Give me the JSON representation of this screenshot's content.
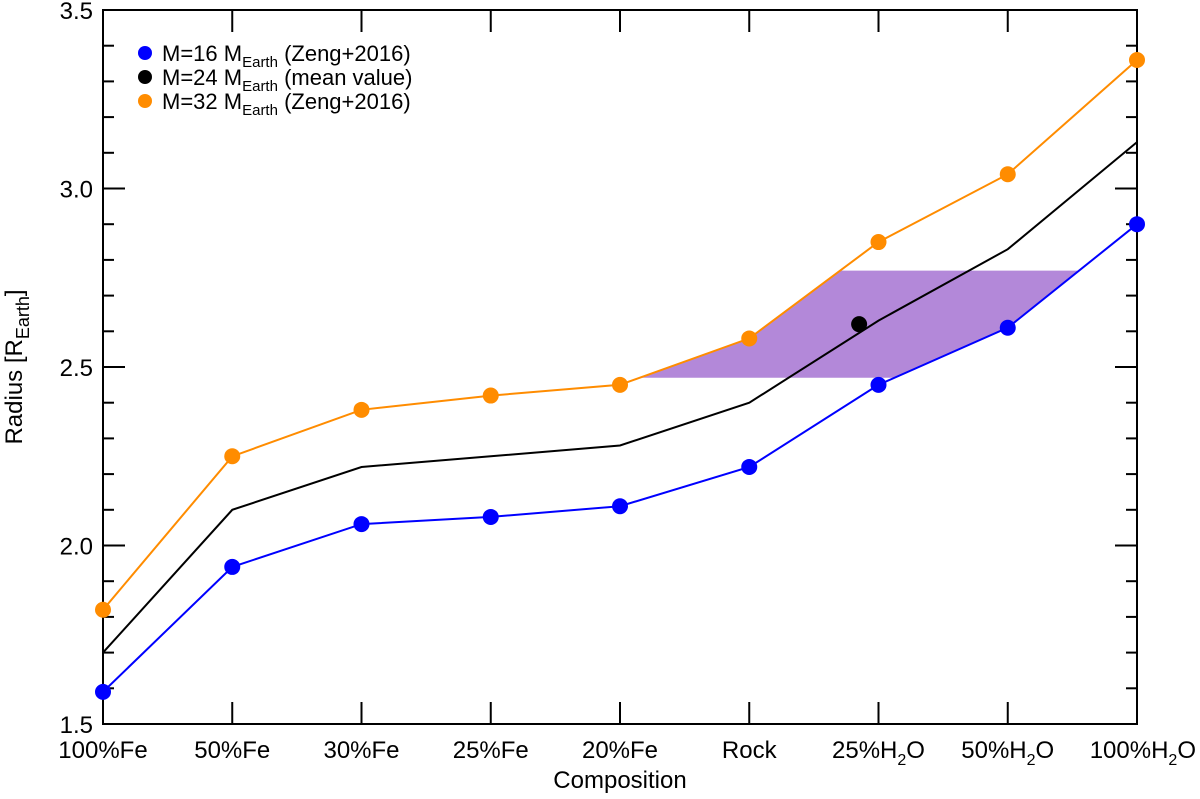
{
  "chart_data": {
    "type": "line",
    "xlabel": "Composition",
    "ylabel": {
      "main": "Radius [R",
      "sub": "Earth",
      "end": "]"
    },
    "ylim": [
      1.5,
      3.5
    ],
    "yticks": [
      "1.5",
      "2.0",
      "2.5",
      "3.0",
      "3.5"
    ],
    "categories": [
      {
        "main": "100%Fe"
      },
      {
        "main": "50%Fe"
      },
      {
        "main": "30%Fe"
      },
      {
        "main": "25%Fe"
      },
      {
        "main": "20%Fe"
      },
      {
        "main": "Rock"
      },
      {
        "main": "25%H",
        "sub": "2",
        "end": "O"
      },
      {
        "main": "50%H",
        "sub": "2",
        "end": "O"
      },
      {
        "main": "100%H",
        "sub": "2",
        "end": "O"
      }
    ],
    "series": [
      {
        "name": "M=16 MEarth (Zeng+2016)",
        "legend": {
          "pre": "M=16 M",
          "sub": "Earth",
          "post": " (Zeng+2016)"
        },
        "color": "#0000ff",
        "markers": true,
        "values": [
          1.59,
          1.94,
          2.06,
          2.08,
          2.11,
          2.22,
          2.45,
          2.61,
          2.9
        ]
      },
      {
        "name": "M=24 MEarth (mean value)",
        "legend": {
          "pre": "M=24 M",
          "sub": "Earth",
          "post": " (mean value)"
        },
        "color": "#000000",
        "markers": false,
        "values": [
          1.7,
          2.1,
          2.22,
          2.25,
          2.28,
          2.4,
          2.63,
          2.83,
          3.13
        ]
      },
      {
        "name": "M=32 MEarth (Zeng+2016)",
        "legend": {
          "pre": "M=32 M",
          "sub": "Earth",
          "post": " (Zeng+2016)"
        },
        "color": "#ff8c00",
        "markers": true,
        "values": [
          1.82,
          2.25,
          2.38,
          2.42,
          2.45,
          2.58,
          2.85,
          3.04,
          3.36
        ]
      }
    ],
    "highlight_point": {
      "x": 5.85,
      "y": 2.62,
      "color": "#000000"
    },
    "shaded_region": {
      "color": "#b388d9",
      "y_range": [
        2.47,
        2.77
      ],
      "description": "region between the 32 and 16 M_Earth curves for radius 2.47–2.77"
    },
    "legend_position": "top-left"
  }
}
